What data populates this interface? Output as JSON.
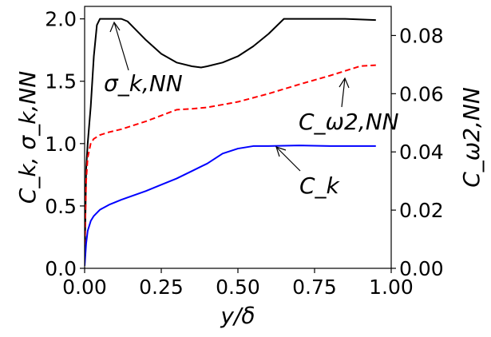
{
  "chart_data": {
    "type": "line",
    "title": "",
    "xlabel": "y/δ",
    "ylabel_left": "C_k,   σ_k,NN",
    "ylabel_right": "C_ω2,NN",
    "xlim": [
      0.0,
      1.0
    ],
    "ylim_left": [
      0.0,
      2.1
    ],
    "ylim_right": [
      0.0,
      0.09
    ],
    "x_ticks": [
      "0.00",
      "0.25",
      "0.50",
      "0.75",
      "1.00"
    ],
    "x_tick_values": [
      0.0,
      0.25,
      0.5,
      0.75,
      1.0
    ],
    "y_left_ticks": [
      "0.0",
      "0.5",
      "1.0",
      "1.5",
      "2.0"
    ],
    "y_left_tick_values": [
      0.0,
      0.5,
      1.0,
      1.5,
      2.0
    ],
    "y_right_ticks": [
      "0.00",
      "0.02",
      "0.04",
      "0.06",
      "0.08"
    ],
    "y_right_tick_values": [
      0.0,
      0.02,
      0.04,
      0.06,
      0.08
    ],
    "grid": false,
    "series": [
      {
        "name": "σ_k,NN",
        "axis": "left",
        "color": "#000000",
        "dash": "solid",
        "x": [
          0.0,
          0.005,
          0.01,
          0.02,
          0.03,
          0.04,
          0.05,
          0.08,
          0.12,
          0.14,
          0.16,
          0.2,
          0.25,
          0.3,
          0.35,
          0.38,
          0.4,
          0.45,
          0.5,
          0.55,
          0.6,
          0.65,
          0.7,
          0.75,
          0.85,
          0.95
        ],
        "y": [
          0.03,
          0.8,
          1.0,
          1.3,
          1.7,
          1.95,
          2.0,
          2.0,
          2.0,
          1.98,
          1.93,
          1.83,
          1.72,
          1.65,
          1.62,
          1.61,
          1.62,
          1.65,
          1.7,
          1.78,
          1.88,
          2.0,
          2.0,
          2.0,
          2.0,
          1.99
        ]
      },
      {
        "name": "C_ω2,NN",
        "axis": "right",
        "color": "#ff0000",
        "dash": "dashed",
        "x": [
          0.0,
          0.005,
          0.01,
          0.02,
          0.03,
          0.05,
          0.08,
          0.12,
          0.2,
          0.25,
          0.3,
          0.35,
          0.4,
          0.5,
          0.6,
          0.7,
          0.8,
          0.9,
          0.95
        ],
        "y": [
          0.005,
          0.03,
          0.038,
          0.043,
          0.0445,
          0.0458,
          0.0468,
          0.0478,
          0.0505,
          0.0525,
          0.0545,
          0.0548,
          0.0553,
          0.0572,
          0.06,
          0.0632,
          0.0662,
          0.0695,
          0.0698
        ]
      },
      {
        "name": "C_k",
        "axis": "left",
        "color": "#0000ff",
        "dash": "solid",
        "x": [
          0.0,
          0.005,
          0.01,
          0.02,
          0.03,
          0.05,
          0.08,
          0.12,
          0.2,
          0.25,
          0.3,
          0.35,
          0.4,
          0.45,
          0.5,
          0.55,
          0.6,
          0.7,
          0.8,
          0.95
        ],
        "y": [
          0.02,
          0.2,
          0.3,
          0.38,
          0.42,
          0.47,
          0.51,
          0.55,
          0.62,
          0.67,
          0.72,
          0.78,
          0.84,
          0.92,
          0.96,
          0.98,
          0.98,
          0.985,
          0.98,
          0.98
        ]
      }
    ],
    "annotations": [
      {
        "text": "σ_k,NN",
        "target": "σ_k,NN curve near x=0.10, y=2.0"
      },
      {
        "text": "C_ω2,NN",
        "target": "C_ω2,NN curve near x=0.85, y=0.066"
      },
      {
        "text": "C_k",
        "target": "C_k curve near x=0.62, y=0.98"
      }
    ]
  }
}
